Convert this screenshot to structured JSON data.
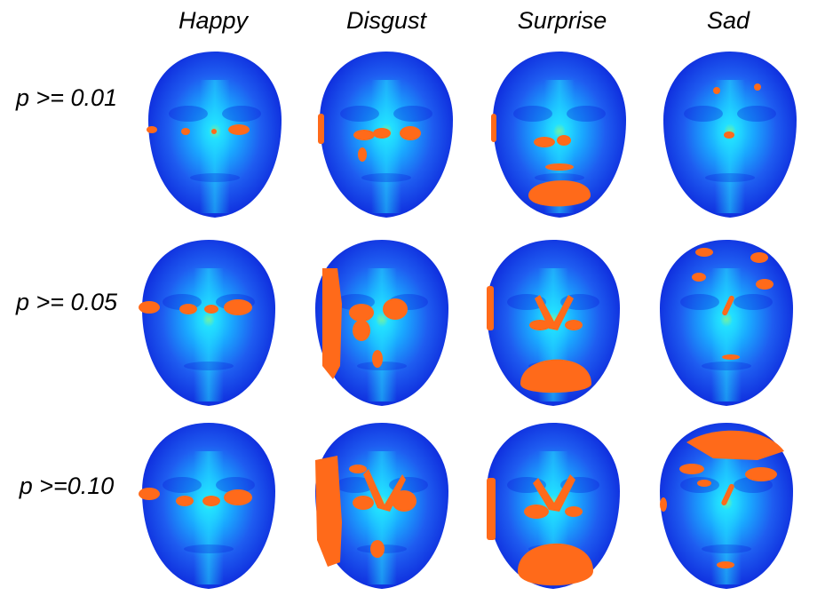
{
  "columns": [
    {
      "label": "Happy"
    },
    {
      "label": "Disgust"
    },
    {
      "label": "Surprise"
    },
    {
      "label": "Sad"
    }
  ],
  "rows": [
    {
      "label": "p >= 0.01"
    },
    {
      "label": "p >= 0.05"
    },
    {
      "label": "p >=0.10"
    }
  ],
  "colors": {
    "face_outer": "#0a1fd8",
    "face_mid": "#1e7cff",
    "face_center": "#22e0ff",
    "nose_tip": "#c8ff40",
    "highlight": "#ff6a1a",
    "background": "#ffffff"
  }
}
